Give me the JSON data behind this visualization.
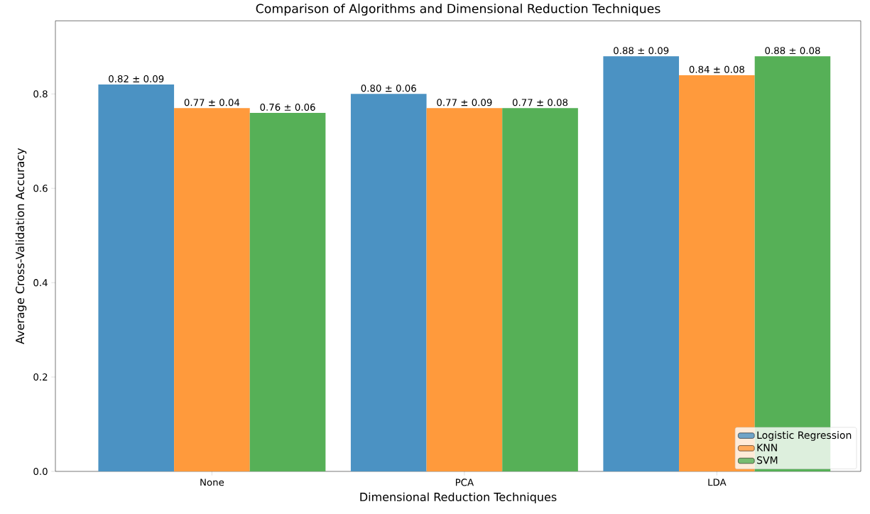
{
  "chart_data": {
    "type": "bar",
    "title": "Comparison of Algorithms and Dimensional Reduction Techniques",
    "xlabel": "Dimensional Reduction Techniques",
    "ylabel": "Average Cross-Validation Accuracy",
    "categories": [
      "None",
      "PCA",
      "LDA"
    ],
    "series": [
      {
        "name": "Logistic Regression",
        "color": "#4b92c3",
        "values": [
          0.82,
          0.8,
          0.88
        ],
        "value_labels": [
          "0.82 ± 0.09",
          "0.80 ± 0.06",
          "0.88 ± 0.09"
        ]
      },
      {
        "name": "KNN",
        "color": "#ff9a3c",
        "values": [
          0.77,
          0.77,
          0.84
        ],
        "value_labels": [
          "0.77 ± 0.04",
          "0.77 ± 0.09",
          "0.84 ± 0.08"
        ]
      },
      {
        "name": "SVM",
        "color": "#56b057",
        "values": [
          0.76,
          0.77,
          0.88
        ],
        "value_labels": [
          "0.76 ± 0.06",
          "0.77 ± 0.08",
          "0.88 ± 0.08"
        ]
      }
    ],
    "ylim": [
      0,
      0.955
    ],
    "yticks": [
      {
        "value": 0,
        "label": "0.0"
      },
      0.2,
      0.4,
      0.6,
      0.8
    ],
    "grid": false,
    "legend": "bottom right"
  }
}
